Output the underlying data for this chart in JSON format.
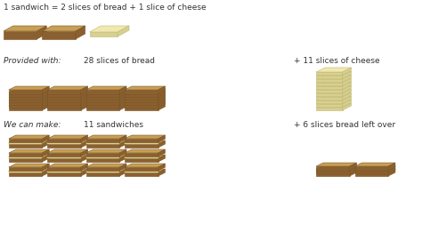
{
  "title_text": "1 sandwich = 2 slices of bread + 1 slice of cheese",
  "provided_label": "Provided with:",
  "bread_label": "28 slices of bread",
  "cheese_plus_label": "+ 11 slices of cheese",
  "make_label": "We can make:",
  "sandwiches_label": "11 sandwiches",
  "leftover_label": "+ 6 slices bread left over",
  "bg_color": "#ffffff",
  "bread_top": "#c8a055",
  "bread_side": "#8b6030",
  "bread_edge": "#7a5525",
  "cheese_top": "#f0e8b0",
  "cheese_side": "#d8d090",
  "cheese_edge": "#c0b870",
  "text_color": "#333333",
  "font_size": 6.5
}
